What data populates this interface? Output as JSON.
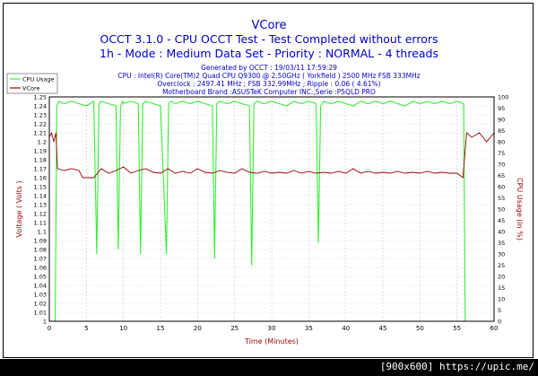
{
  "chart_data": {
    "type": "line",
    "title": "VCore",
    "subtitle_lines": [
      "OCCT 3.1.0 - CPU OCCT Test - Test Completed without errors",
      "1h - Mode : Medium Data Set - Priority : NORMAL - 4 threads"
    ],
    "info_lines": [
      "Generated by OCCT : 19/03/11 17:59:29",
      "CPU : Intel(R) Core(TM)2 Quad CPU Q9300 @ 2.50GHz ( Yorkfield ) 2500 MHz FSB 333MHz",
      "Overclock : 2497.41 MHz ; FSB 332.99MHz ; Ripple : 0.06 ( 4.61%)",
      "Motherboard Brand :ASUSTeK Computer INC.,Serie :P5QLD PRO"
    ],
    "xlabel": "Time (Minutes)",
    "ylabel": "Voltage ( Volts )",
    "y2label": "CPU Usage (in %)",
    "xlim": [
      0,
      60
    ],
    "ylim": [
      1.0,
      1.25
    ],
    "y2lim": [
      0,
      100
    ],
    "x_ticks": [
      "0",
      "5",
      "10",
      "15",
      "20",
      "25",
      "30",
      "35",
      "40",
      "45",
      "50",
      "55",
      "60"
    ],
    "y_ticks": [
      "1",
      "1.01",
      "1.02",
      "1.03",
      "1.04",
      "1.05",
      "1.06",
      "1.07",
      "1.08",
      "1.09",
      "1.1",
      "1.11",
      "1.12",
      "1.13",
      "1.14",
      "1.15",
      "1.16",
      "1.17",
      "1.18",
      "1.19",
      "1.2",
      "1.21",
      "1.22",
      "1.23",
      "1.24",
      "1.25"
    ],
    "y2_ticks": [
      "0",
      "5",
      "10",
      "15",
      "20",
      "25",
      "30",
      "35",
      "40",
      "45",
      "50",
      "55",
      "60",
      "65",
      "70",
      "75",
      "80",
      "85",
      "90",
      "95",
      "100"
    ],
    "grid": true,
    "legend_position": "top-left",
    "series": [
      {
        "name": "CPU Usage",
        "axis": "right",
        "color": "#33ee33",
        "x": [
          0,
          0.3,
          0.8,
          1.0,
          1.3,
          2.0,
          3.0,
          4.0,
          5.0,
          6.0,
          6.4,
          6.7,
          7.0,
          8.0,
          9.0,
          9.3,
          9.6,
          9.9,
          10.0,
          11.0,
          12.0,
          12.3,
          12.6,
          13.0,
          14.0,
          15.0,
          15.8,
          16.1,
          16.4,
          17.0,
          18.0,
          19.0,
          20.0,
          21.0,
          22.0,
          22.3,
          22.6,
          23.0,
          24.0,
          25.0,
          26.0,
          27.0,
          27.3,
          27.6,
          28.0,
          29.0,
          30.0,
          31.0,
          32.0,
          33.0,
          34.0,
          35.0,
          36.0,
          36.3,
          36.6,
          37.0,
          38.0,
          39.0,
          40.0,
          41.0,
          42.0,
          43.0,
          44.0,
          45.0,
          46.0,
          47.0,
          48.0,
          49.0,
          50.0,
          51.0,
          52.0,
          53.0,
          54.0,
          55.0,
          55.9,
          56.1,
          57.0,
          58.0,
          59.0,
          60.0
        ],
        "values": [
          0,
          0,
          0,
          96,
          98,
          97,
          98,
          97,
          96,
          98,
          30,
          97,
          98,
          97,
          96,
          32,
          96,
          98,
          97,
          98,
          97,
          30,
          97,
          98,
          97,
          96,
          30,
          97,
          98,
          97,
          98,
          97,
          98,
          97,
          96,
          28,
          97,
          98,
          97,
          98,
          97,
          96,
          25,
          97,
          98,
          97,
          98,
          97,
          96,
          98,
          97,
          98,
          97,
          35,
          96,
          98,
          97,
          98,
          97,
          96,
          98,
          97,
          98,
          97,
          98,
          97,
          96,
          98,
          97,
          98,
          97,
          98,
          97,
          98,
          97,
          0,
          0,
          0,
          0,
          0
        ]
      },
      {
        "name": "VCore",
        "axis": "left",
        "color": "#990000",
        "x": [
          0,
          0.3,
          0.6,
          0.9,
          1.1,
          2.0,
          3.0,
          4.0,
          4.5,
          5.0,
          6.0,
          7.0,
          8.0,
          9.0,
          10.0,
          11.0,
          12.0,
          13.0,
          14.0,
          15.0,
          16.0,
          17.0,
          18.0,
          19.0,
          20.0,
          21.0,
          22.0,
          23.0,
          24.0,
          25.0,
          26.0,
          27.0,
          28.0,
          29.0,
          30.0,
          31.0,
          32.0,
          33.0,
          34.0,
          35.0,
          36.0,
          37.0,
          38.0,
          39.0,
          40.0,
          41.0,
          42.0,
          43.0,
          44.0,
          45.0,
          46.0,
          47.0,
          48.0,
          49.0,
          50.0,
          51.0,
          52.0,
          53.0,
          54.0,
          55.0,
          55.8,
          56.0,
          56.3,
          57.0,
          58.0,
          59.0,
          60.0
        ],
        "values": [
          1.205,
          1.21,
          1.2,
          1.21,
          1.17,
          1.168,
          1.17,
          1.168,
          1.16,
          1.16,
          1.16,
          1.17,
          1.165,
          1.168,
          1.172,
          1.165,
          1.168,
          1.17,
          1.166,
          1.165,
          1.17,
          1.165,
          1.167,
          1.165,
          1.17,
          1.166,
          1.165,
          1.168,
          1.166,
          1.165,
          1.17,
          1.166,
          1.165,
          1.167,
          1.165,
          1.166,
          1.165,
          1.168,
          1.165,
          1.167,
          1.165,
          1.166,
          1.165,
          1.167,
          1.165,
          1.17,
          1.165,
          1.167,
          1.165,
          1.166,
          1.165,
          1.167,
          1.165,
          1.166,
          1.165,
          1.167,
          1.165,
          1.166,
          1.165,
          1.165,
          1.16,
          1.18,
          1.21,
          1.205,
          1.21,
          1.2,
          1.21
        ]
      }
    ]
  },
  "footer": {
    "text": "[900x600] https://upic.me/"
  }
}
